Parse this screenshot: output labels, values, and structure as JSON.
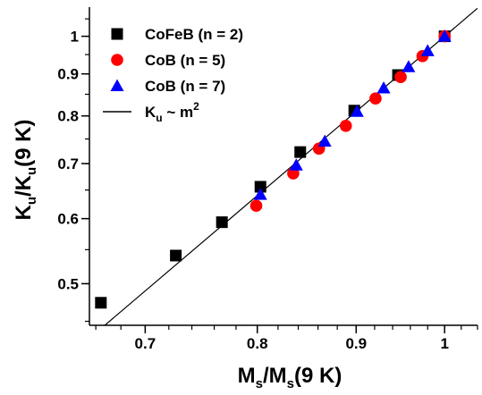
{
  "chart_data": {
    "type": "scatter",
    "xscale": "log",
    "yscale": "log",
    "xlim": [
      0.655,
      1.04
    ],
    "ylim": [
      0.445,
      1.085
    ],
    "xticks": [
      0.7,
      0.8,
      0.9,
      1
    ],
    "xtick_labels": [
      "0.7",
      "0.8",
      "0.9",
      "1"
    ],
    "yticks": [
      0.5,
      0.6,
      0.7,
      0.8,
      0.9,
      1
    ],
    "ytick_labels": [
      "0.5",
      "0.6",
      "0.7",
      "0.8",
      "0.9",
      "1"
    ],
    "xlabel": {
      "main": "M",
      "sub": "s",
      "mid": "/M",
      "sub2": "s",
      "tail": "(9 K)"
    },
    "ylabel": {
      "main": "K",
      "sub": "u",
      "mid": "/K",
      "sub2": "u",
      "tail": "(9 K)"
    },
    "legend_position": "top-left",
    "series": [
      {
        "name": "CoFeB (n = 2)",
        "marker": "square",
        "color": "#000000",
        "x": [
          0.664,
          0.726,
          0.767,
          0.803,
          0.842,
          0.898,
          0.946,
          1.0
        ],
        "y": [
          0.474,
          0.541,
          0.594,
          0.656,
          0.723,
          0.812,
          0.897,
          1.0
        ]
      },
      {
        "name": "CoB (n = 5)",
        "marker": "circle",
        "color": "#ff0000",
        "x": [
          0.799,
          0.835,
          0.861,
          0.889,
          0.921,
          0.949,
          0.974,
          1.0
        ],
        "y": [
          0.622,
          0.681,
          0.73,
          0.778,
          0.84,
          0.892,
          0.946,
          1.0
        ]
      },
      {
        "name": "CoB (n = 7)",
        "marker": "triangle",
        "color": "#0000ff",
        "x": [
          0.803,
          0.838,
          0.867,
          0.901,
          0.93,
          0.958,
          0.98,
          1.0
        ],
        "y": [
          0.642,
          0.697,
          0.745,
          0.81,
          0.865,
          0.918,
          0.96,
          1.0
        ]
      },
      {
        "name": "K",
        "name_sub": "u",
        "name_tail": " ~ m",
        "name_sup": "2",
        "type": "line",
        "color": "#000000",
        "x": [
          0.655,
          1.04
        ],
        "y": [
          0.429,
          1.0816
        ]
      }
    ]
  }
}
